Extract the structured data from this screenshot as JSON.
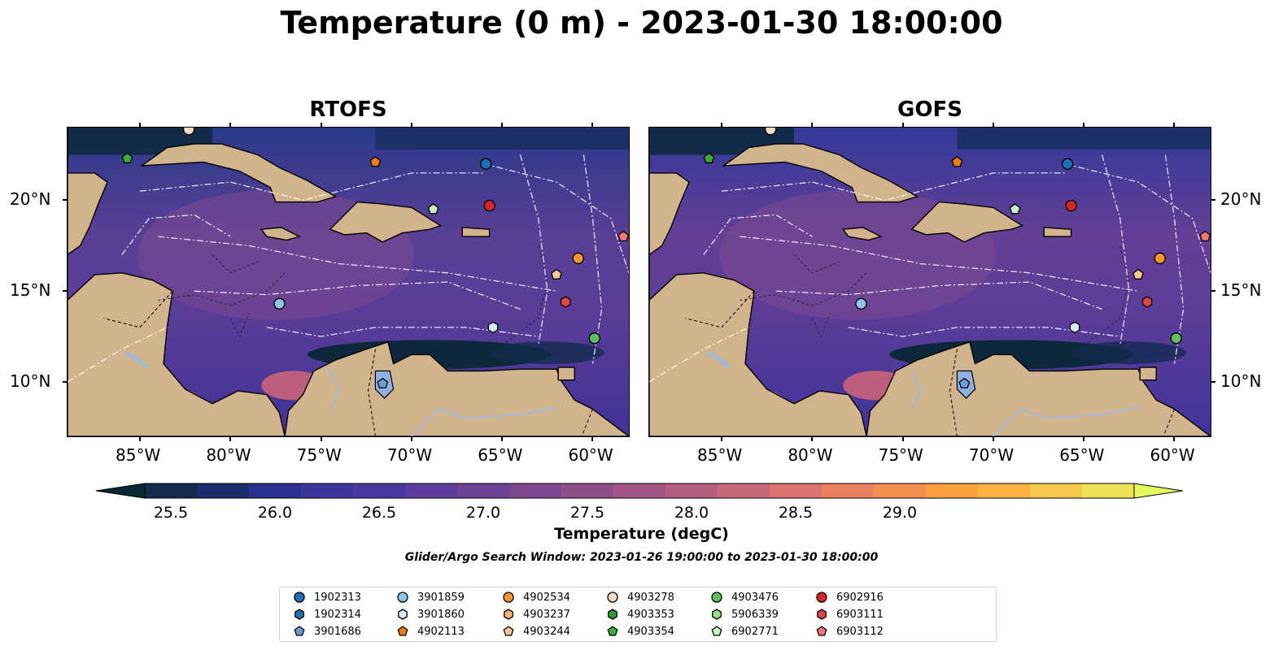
{
  "title": "Temperature (0 m) - 2023-01-30 18:00:00",
  "panels": [
    {
      "id": "rtofs",
      "title": "RTOFS"
    },
    {
      "id": "gofs",
      "title": "GOFS"
    }
  ],
  "map": {
    "lon_range": [
      -89,
      -58
    ],
    "lat_range": [
      7,
      24
    ],
    "x_ticks": [
      "85°W",
      "80°W",
      "75°W",
      "70°W",
      "65°W",
      "60°W"
    ],
    "y_ticks": [
      "20°N",
      "15°N",
      "10°N"
    ],
    "land_color": "#d2b48c",
    "river_color": "#a0b8d8"
  },
  "colorbar": {
    "label": "Temperature (degC)",
    "ticks": [
      "25.5",
      "26.0",
      "26.5",
      "27.0",
      "27.5",
      "28.0",
      "28.5",
      "29.0"
    ],
    "colors": [
      "#0a2737",
      "#142a4f",
      "#1c2d6e",
      "#2b3190",
      "#3c359e",
      "#4b389f",
      "#5c3c9c",
      "#6c4296",
      "#7e4890",
      "#8f4f8b",
      "#a35686",
      "#b65e80",
      "#c86778",
      "#db7270",
      "#ea8060",
      "#f58f4f",
      "#fb9f40",
      "#fcb240",
      "#f6c84a",
      "#eee255",
      "#e7f85e"
    ]
  },
  "subtitle": "Glider/Argo Search Window: 2023-01-26 19:00:00 to 2023-01-30 18:00:00",
  "legend": [
    {
      "id": "1902313",
      "marker": "circle",
      "color": "#1f6fb4"
    },
    {
      "id": "1902314",
      "marker": "hexagon",
      "color": "#1f6fb4"
    },
    {
      "id": "3901686",
      "marker": "pentagon",
      "color": "#6a9fd8"
    },
    {
      "id": "3901859",
      "marker": "circle",
      "color": "#8fc3ea"
    },
    {
      "id": "3901860",
      "marker": "hexagon",
      "color": "#d6eaf8"
    },
    {
      "id": "4902113",
      "marker": "pentagon",
      "color": "#f07c10"
    },
    {
      "id": "4902534",
      "marker": "circle",
      "color": "#f7962f"
    },
    {
      "id": "4903237",
      "marker": "hexagon",
      "color": "#f9b36b"
    },
    {
      "id": "4903244",
      "marker": "pentagon",
      "color": "#fbc895"
    },
    {
      "id": "4903278",
      "marker": "circle",
      "color": "#fbdcc2"
    },
    {
      "id": "4903353",
      "marker": "hexagon",
      "color": "#2ca02c"
    },
    {
      "id": "4903354",
      "marker": "pentagon",
      "color": "#3aac3a"
    },
    {
      "id": "4903476",
      "marker": "circle",
      "color": "#5fbf5f"
    },
    {
      "id": "5906339",
      "marker": "hexagon",
      "color": "#98df8a"
    },
    {
      "id": "6902771",
      "marker": "pentagon",
      "color": "#c7f0c0"
    },
    {
      "id": "6902916",
      "marker": "circle",
      "color": "#d62728"
    },
    {
      "id": "6903111",
      "marker": "hexagon",
      "color": "#e04848"
    },
    {
      "id": "6903112",
      "marker": "pentagon",
      "color": "#f07878"
    }
  ],
  "floats": [
    {
      "id": "4903354",
      "lon": -85.7,
      "lat": 22.3
    },
    {
      "id": "4903278",
      "lon": -82.3,
      "lat": 23.9
    },
    {
      "id": "4902113",
      "lon": -72.0,
      "lat": 22.1
    },
    {
      "id": "6902771",
      "lon": -68.8,
      "lat": 19.5
    },
    {
      "id": "1902313",
      "lon": -65.9,
      "lat": 22.0
    },
    {
      "id": "6902916",
      "lon": -65.7,
      "lat": 19.7
    },
    {
      "id": "6903112",
      "lon": -58.3,
      "lat": 18.0
    },
    {
      "id": "4902534",
      "lon": -60.8,
      "lat": 16.8
    },
    {
      "id": "4903244",
      "lon": -62.0,
      "lat": 15.9
    },
    {
      "id": "6903111",
      "lon": -61.5,
      "lat": 14.4
    },
    {
      "id": "3901859",
      "lon": -77.3,
      "lat": 14.3
    },
    {
      "id": "3901860",
      "lon": -65.5,
      "lat": 13.0
    },
    {
      "id": "4903476",
      "lon": -59.9,
      "lat": 12.4
    },
    {
      "id": "3901686",
      "lon": -71.6,
      "lat": 9.9
    }
  ]
}
